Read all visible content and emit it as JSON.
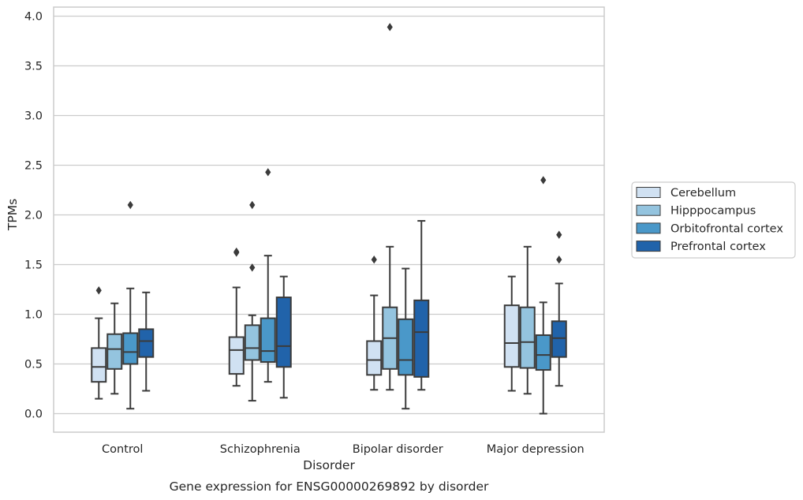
{
  "chart_data": {
    "type": "box",
    "title": "Gene expression for ENSG00000269892 by disorder",
    "xlabel": "Disorder",
    "ylabel": "TPMs",
    "ylim": [
      -0.18,
      4.08
    ],
    "yticks": [
      0.0,
      0.5,
      1.0,
      1.5,
      2.0,
      2.5,
      3.0,
      3.5,
      4.0
    ],
    "ytick_labels": [
      "0.0",
      "0.5",
      "1.0",
      "1.5",
      "2.0",
      "2.5",
      "3.0",
      "3.5",
      "4.0"
    ],
    "grid": "horizontal",
    "legend_position": "center-right, outside plot",
    "categories": [
      "Control",
      "Schizophrenia",
      "Bipolar disorder",
      "Major depression"
    ],
    "series": [
      {
        "name": "Cerebellum",
        "color": "#d0e1f2",
        "boxes": [
          {
            "whislo": 0.15,
            "q1": 0.32,
            "med": 0.47,
            "q3": 0.66,
            "whishi": 0.96,
            "fliers": [
              1.24
            ]
          },
          {
            "whislo": 0.28,
            "q1": 0.4,
            "med": 0.64,
            "q3": 0.77,
            "whishi": 1.27,
            "fliers": [
              1.62,
              1.63
            ]
          },
          {
            "whislo": 0.24,
            "q1": 0.39,
            "med": 0.54,
            "q3": 0.73,
            "whishi": 1.19,
            "fliers": [
              1.55
            ]
          },
          {
            "whislo": 0.23,
            "q1": 0.47,
            "med": 0.71,
            "q3": 1.09,
            "whishi": 1.38,
            "fliers": []
          }
        ]
      },
      {
        "name": "Hipppocampus",
        "color": "#94c4df",
        "boxes": [
          {
            "whislo": 0.2,
            "q1": 0.45,
            "med": 0.65,
            "q3": 0.8,
            "whishi": 1.11,
            "fliers": []
          },
          {
            "whislo": 0.13,
            "q1": 0.54,
            "med": 0.66,
            "q3": 0.89,
            "whishi": 0.99,
            "fliers": [
              1.47,
              2.1
            ]
          },
          {
            "whislo": 0.24,
            "q1": 0.45,
            "med": 0.76,
            "q3": 1.07,
            "whishi": 1.68,
            "fliers": [
              3.89
            ]
          },
          {
            "whislo": 0.2,
            "q1": 0.46,
            "med": 0.72,
            "q3": 1.07,
            "whishi": 1.68,
            "fliers": []
          }
        ]
      },
      {
        "name": "Orbitofrontal cortex",
        "color": "#4a98c9",
        "boxes": [
          {
            "whislo": 0.05,
            "q1": 0.5,
            "med": 0.62,
            "q3": 0.81,
            "whishi": 1.26,
            "fliers": [
              2.1
            ]
          },
          {
            "whislo": 0.32,
            "q1": 0.52,
            "med": 0.63,
            "q3": 0.96,
            "whishi": 1.59,
            "fliers": [
              2.43
            ]
          },
          {
            "whislo": 0.05,
            "q1": 0.39,
            "med": 0.54,
            "q3": 0.95,
            "whishi": 1.46,
            "fliers": []
          },
          {
            "whislo": 0.0,
            "q1": 0.44,
            "med": 0.59,
            "q3": 0.79,
            "whishi": 1.12,
            "fliers": [
              2.35
            ]
          }
        ]
      },
      {
        "name": "Prefrontal cortex",
        "color": "#2163aa",
        "boxes": [
          {
            "whislo": 0.23,
            "q1": 0.57,
            "med": 0.73,
            "q3": 0.85,
            "whishi": 1.22,
            "fliers": []
          },
          {
            "whislo": 0.16,
            "q1": 0.47,
            "med": 0.68,
            "q3": 1.17,
            "whishi": 1.38,
            "fliers": []
          },
          {
            "whislo": 0.24,
            "q1": 0.37,
            "med": 0.82,
            "q3": 1.14,
            "whishi": 1.94,
            "fliers": []
          },
          {
            "whislo": 0.28,
            "q1": 0.57,
            "med": 0.76,
            "q3": 0.93,
            "whishi": 1.31,
            "fliers": [
              1.55,
              1.8
            ]
          }
        ]
      }
    ]
  }
}
